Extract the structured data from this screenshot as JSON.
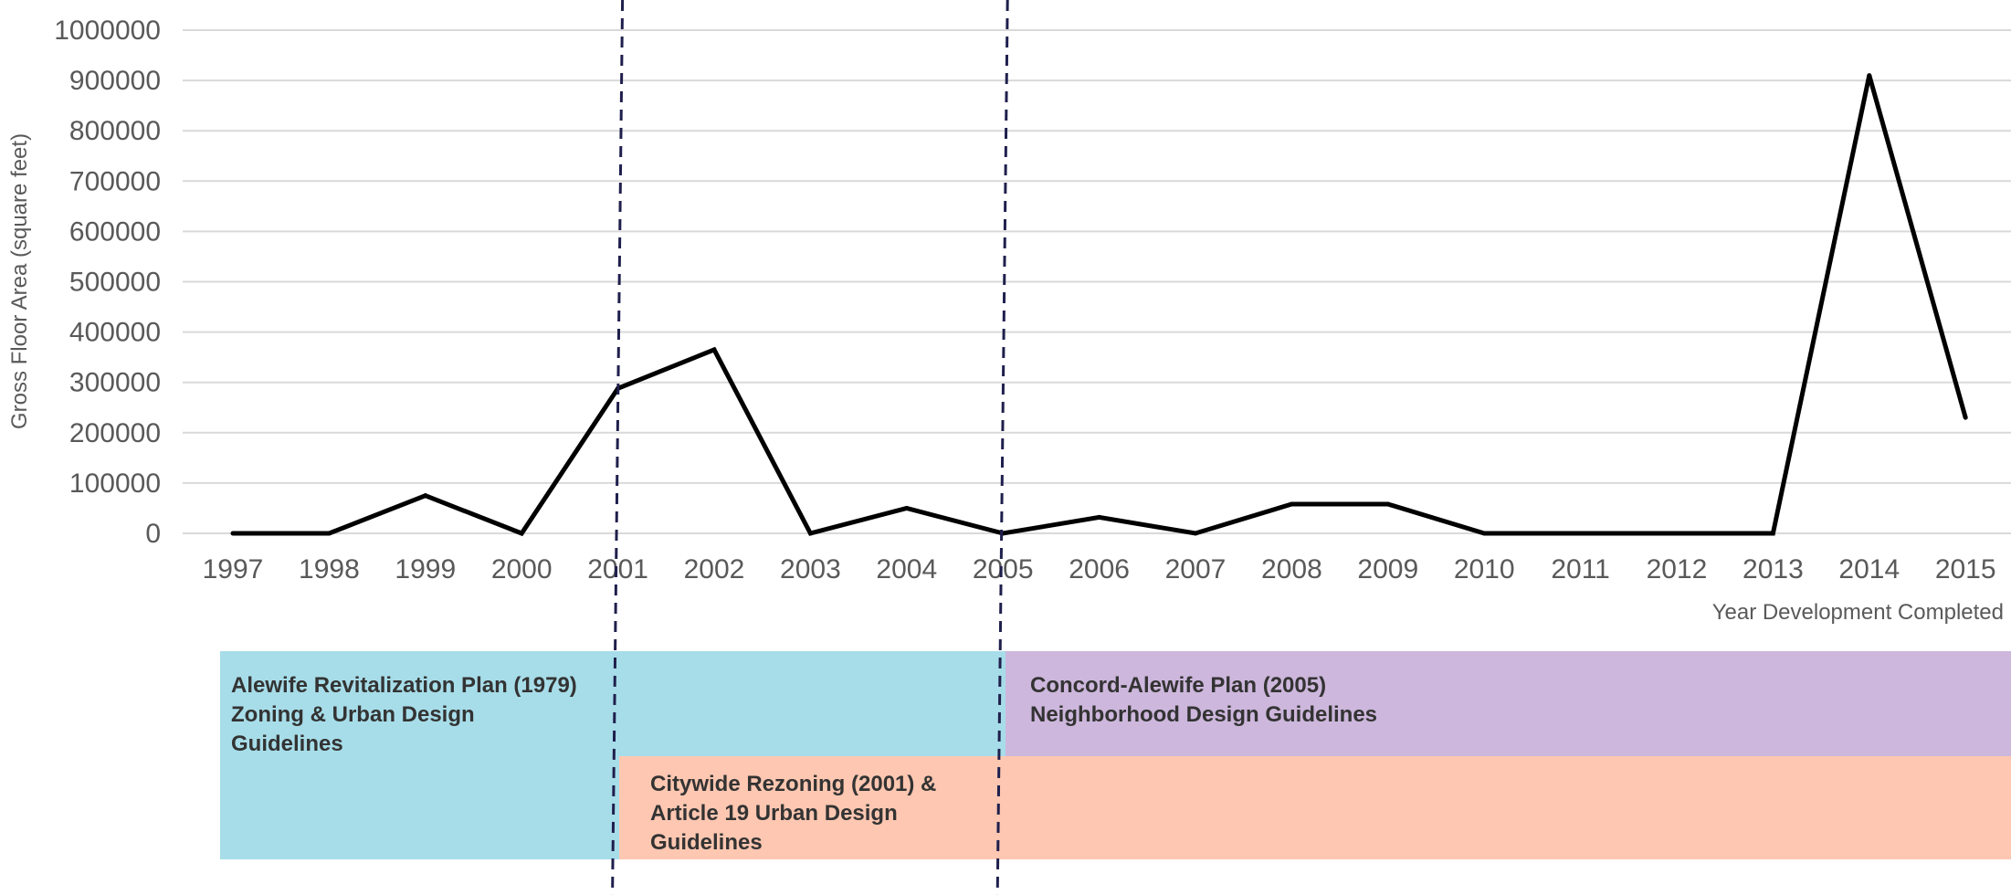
{
  "chart_data": {
    "type": "line",
    "title": "",
    "xlabel": "Year Development Completed",
    "ylabel": "Gross Floor Area (square feet)",
    "x": [
      "1997",
      "1998",
      "1999",
      "2000",
      "2001",
      "2002",
      "2003",
      "2004",
      "2005",
      "2006",
      "2007",
      "2008",
      "2009",
      "2010",
      "2011",
      "2012",
      "2013",
      "2014",
      "2015"
    ],
    "series": [
      {
        "values": [
          0,
          0,
          75000,
          0,
          288000,
          365000,
          0,
          50000,
          0,
          32000,
          0,
          58000,
          58000,
          0,
          0,
          0,
          0,
          910000,
          230000
        ],
        "color": "#000000"
      }
    ],
    "ylim": [
      0,
      1000000
    ],
    "yticks": [
      0,
      100000,
      200000,
      300000,
      400000,
      500000,
      600000,
      700000,
      800000,
      900000,
      1000000
    ],
    "grid": true,
    "legend": "none",
    "reference_lines": [
      {
        "x": "2001",
        "style": "dashed",
        "color": "#1f1f4d"
      },
      {
        "x": "2005",
        "style": "dashed",
        "color": "#1f1f4d"
      }
    ],
    "policy_bands": [
      {
        "lines": [
          "Alewife Revitalization Plan (1979)",
          "Zoning & Urban Design",
          "Guidelines"
        ],
        "color": "#a7dde9"
      },
      {
        "lines": [
          "Concord-Alewife Plan (2005)",
          "Neighborhood Design Guidelines"
        ],
        "color": "#cdb7dc"
      },
      {
        "lines": [
          "Citywide Rezoning (2001) &",
          "Article 19 Urban Design",
          "Guidelines"
        ],
        "color": "#fec7b1"
      }
    ]
  }
}
